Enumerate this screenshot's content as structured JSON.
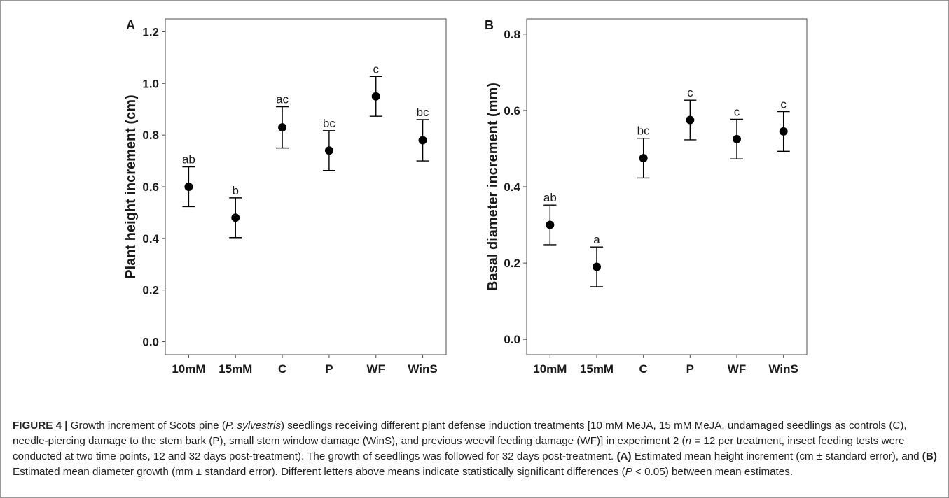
{
  "chart_data": [
    {
      "type": "scatter",
      "panel": "A",
      "ylabel": "Plant height increment (cm)",
      "categories": [
        "10mM",
        "15mM",
        "C",
        "P",
        "WF",
        "WinS"
      ],
      "values": [
        0.6,
        0.48,
        0.83,
        0.74,
        0.95,
        0.78
      ],
      "error": [
        0.077,
        0.077,
        0.08,
        0.077,
        0.077,
        0.08
      ],
      "letters": [
        "ab",
        "b",
        "ac",
        "bc",
        "c",
        "bc"
      ],
      "ylim": [
        -0.05,
        1.25
      ],
      "yticks": [
        "0.0",
        "0.2",
        "0.4",
        "0.6",
        "0.8",
        "1.0",
        "1.2"
      ],
      "grid": false
    },
    {
      "type": "scatter",
      "panel": "B",
      "ylabel": "Basal diameter increment (mm)",
      "categories": [
        "10mM",
        "15mM",
        "C",
        "P",
        "WF",
        "WinS"
      ],
      "values": [
        0.3,
        0.19,
        0.475,
        0.575,
        0.525,
        0.545
      ],
      "error": [
        0.052,
        0.052,
        0.052,
        0.052,
        0.052,
        0.052
      ],
      "letters": [
        "ab",
        "a",
        "bc",
        "c",
        "c",
        "c"
      ],
      "ylim": [
        -0.04,
        0.84
      ],
      "yticks": [
        "0.0",
        "0.2",
        "0.4",
        "0.6",
        "0.8"
      ],
      "grid": false
    }
  ],
  "caption": {
    "label": "FIGURE 4 |",
    "text_1": " Growth increment of Scots pine (",
    "species": "P. sylvestris",
    "text_2": ") seedlings receiving different plant defense induction treatments [10 mM MeJA, 15 mM MeJA, undamaged seedlings as controls (C), needle-piercing damage to the stem bark (P), small stem window damage (WinS), and previous weevil feeding damage (WF)] in experiment 2 (",
    "n_symbol": "n",
    "text_3": " = 12 per treatment, insect feeding tests were conducted at two time points, 12 and 32 days post-treatment). The growth of seedlings was followed for 32 days post-treatment. ",
    "part_a_label": "(A)",
    "part_a_text": " Estimated mean height increment (cm ± standard error), and ",
    "part_b_label": "(B)",
    "part_b_text": " Estimated mean diameter growth (mm ± standard error). Different letters above means indicate statistically significant differences (",
    "p_symbol": "P",
    "text_4": " < 0.05) between mean estimates."
  },
  "colors": {
    "mark": "#000000",
    "frame": "#4d4d4d",
    "text": "#1a1a1a"
  }
}
